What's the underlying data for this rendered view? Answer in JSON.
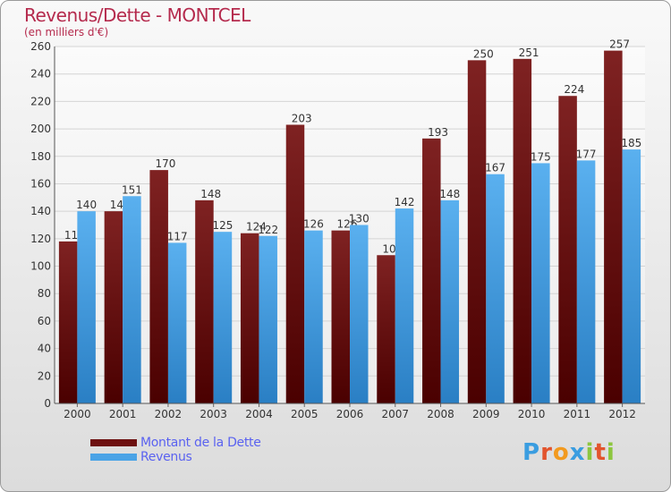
{
  "header": {
    "title": "Revenus/Dette - MONTCEL",
    "subtitle": "(en milliers d'€)"
  },
  "legend": {
    "debt_label": "Montant de la Dette",
    "revenue_label": "Revenus"
  },
  "logo": {
    "letters": [
      "P",
      "r",
      "o",
      "x",
      "i",
      "t",
      "i"
    ],
    "colors": [
      "#3a9de0",
      "#e2542d",
      "#f29a1f",
      "#3a9de0",
      "#8cc63e",
      "#e2542d",
      "#8cc63e"
    ]
  },
  "colors": {
    "debt": "#6d1010",
    "revenue": "#4aa3e6",
    "title": "#b52a4d",
    "legend_text": "#5a62f0"
  },
  "chart_data": {
    "type": "bar",
    "title": "Revenus/Dette - MONTCEL",
    "ylabel": "(en milliers d'€)",
    "xlabel": "",
    "ylim": [
      0,
      260
    ],
    "yticks": [
      0,
      20,
      40,
      60,
      80,
      100,
      120,
      140,
      160,
      180,
      200,
      220,
      240,
      260
    ],
    "grid": true,
    "legend_position": "bottom-left",
    "categories": [
      "2000",
      "2001",
      "2002",
      "2003",
      "2004",
      "2005",
      "2006",
      "2007",
      "2008",
      "2009",
      "2010",
      "2011",
      "2012"
    ],
    "series": [
      {
        "name": "Montant de la Dette",
        "values": [
          118,
          140,
          170,
          148,
          124,
          203,
          126,
          108,
          193,
          250,
          251,
          224,
          257
        ]
      },
      {
        "name": "Revenus",
        "values": [
          140,
          151,
          117,
          125,
          122,
          126,
          130,
          142,
          148,
          167,
          175,
          177,
          185
        ]
      }
    ]
  }
}
